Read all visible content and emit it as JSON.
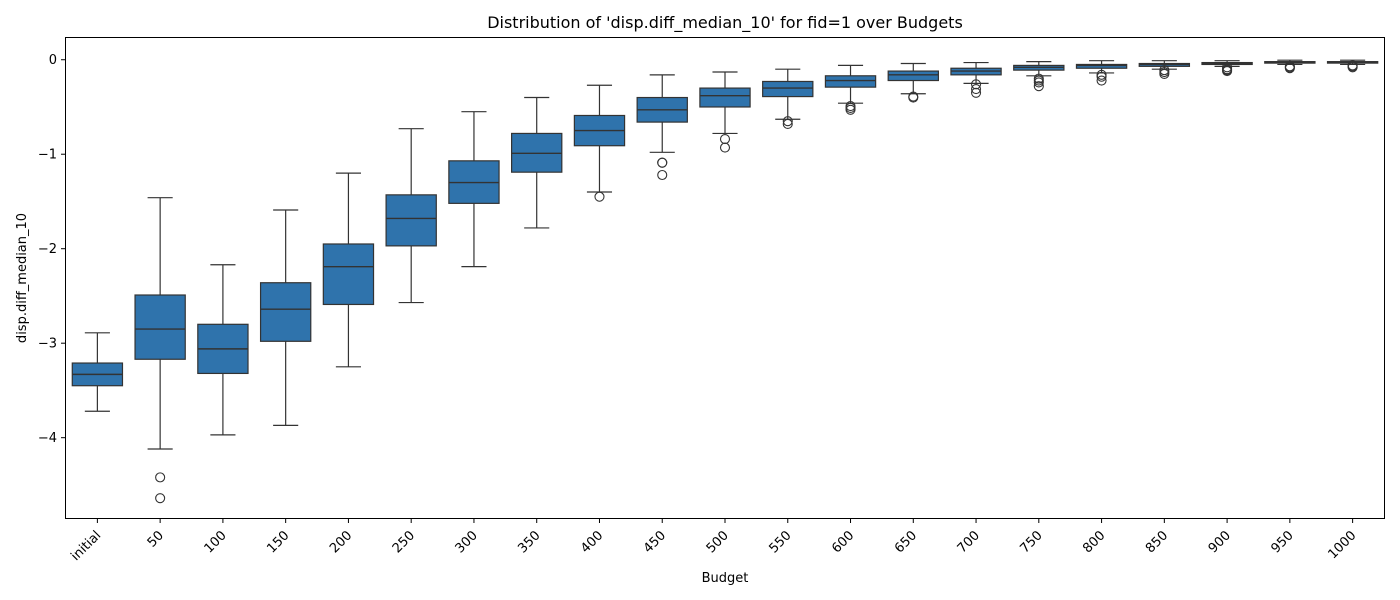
{
  "chart_data": {
    "type": "box",
    "title": "Distribution of 'disp.diff_median_10' for fid=1 over Budgets",
    "xlabel": "Budget",
    "ylabel": "disp.diff_median_10",
    "ylim": [
      -4.85,
      0.23
    ],
    "yticks": [
      0,
      -1,
      -2,
      -3,
      -4
    ],
    "ytick_labels": [
      "0",
      "−1",
      "−2",
      "−3",
      "−4"
    ],
    "grid": false,
    "legend": "none",
    "box_color": "#2f73ac",
    "line_color": "#333333",
    "categories": [
      "initial",
      "50",
      "100",
      "150",
      "200",
      "250",
      "300",
      "350",
      "400",
      "450",
      "500",
      "550",
      "600",
      "650",
      "700",
      "750",
      "800",
      "850",
      "900",
      "950",
      "1000"
    ],
    "boxes": [
      {
        "category": "initial",
        "whisker_low": -3.72,
        "q1": -3.45,
        "median": -3.33,
        "q3": -3.21,
        "whisker_high": -2.89,
        "outliers": []
      },
      {
        "category": "50",
        "whisker_low": -4.12,
        "q1": -3.17,
        "median": -2.85,
        "q3": -2.49,
        "whisker_high": -1.46,
        "outliers": [
          -4.42,
          -4.64
        ]
      },
      {
        "category": "100",
        "whisker_low": -3.97,
        "q1": -3.32,
        "median": -3.06,
        "q3": -2.8,
        "whisker_high": -2.17,
        "outliers": []
      },
      {
        "category": "150",
        "whisker_low": -3.87,
        "q1": -2.98,
        "median": -2.64,
        "q3": -2.36,
        "whisker_high": -1.59,
        "outliers": []
      },
      {
        "category": "200",
        "whisker_low": -3.25,
        "q1": -2.59,
        "median": -2.19,
        "q3": -1.95,
        "whisker_high": -1.2,
        "outliers": []
      },
      {
        "category": "250",
        "whisker_low": -2.57,
        "q1": -1.97,
        "median": -1.68,
        "q3": -1.43,
        "whisker_high": -0.73,
        "outliers": []
      },
      {
        "category": "300",
        "whisker_low": -2.19,
        "q1": -1.52,
        "median": -1.3,
        "q3": -1.07,
        "whisker_high": -0.55,
        "outliers": []
      },
      {
        "category": "350",
        "whisker_low": -1.78,
        "q1": -1.19,
        "median": -0.99,
        "q3": -0.78,
        "whisker_high": -0.4,
        "outliers": []
      },
      {
        "category": "400",
        "whisker_low": -1.4,
        "q1": -0.91,
        "median": -0.75,
        "q3": -0.59,
        "whisker_high": -0.27,
        "outliers": [
          -1.45
        ]
      },
      {
        "category": "450",
        "whisker_low": -0.98,
        "q1": -0.66,
        "median": -0.53,
        "q3": -0.4,
        "whisker_high": -0.16,
        "outliers": [
          -1.09,
          -1.09,
          -1.22
        ]
      },
      {
        "category": "500",
        "whisker_low": -0.78,
        "q1": -0.5,
        "median": -0.38,
        "q3": -0.3,
        "whisker_high": -0.13,
        "outliers": [
          -0.84,
          -0.93
        ]
      },
      {
        "category": "550",
        "whisker_low": -0.63,
        "q1": -0.39,
        "median": -0.3,
        "q3": -0.23,
        "whisker_high": -0.1,
        "outliers": [
          -0.65,
          -0.68
        ]
      },
      {
        "category": "600",
        "whisker_low": -0.46,
        "q1": -0.29,
        "median": -0.22,
        "q3": -0.17,
        "whisker_high": -0.06,
        "outliers": [
          -0.49,
          -0.51,
          -0.53
        ]
      },
      {
        "category": "650",
        "whisker_low": -0.36,
        "q1": -0.22,
        "median": -0.16,
        "q3": -0.12,
        "whisker_high": -0.04,
        "outliers": [
          -0.39,
          -0.4
        ]
      },
      {
        "category": "700",
        "whisker_low": -0.25,
        "q1": -0.16,
        "median": -0.12,
        "q3": -0.09,
        "whisker_high": -0.03,
        "outliers": [
          -0.26,
          -0.31,
          -0.35
        ]
      },
      {
        "category": "750",
        "whisker_low": -0.17,
        "q1": -0.11,
        "median": -0.08,
        "q3": -0.06,
        "whisker_high": -0.02,
        "outliers": [
          -0.2,
          -0.22,
          -0.24,
          -0.28
        ]
      },
      {
        "category": "800",
        "whisker_low": -0.14,
        "q1": -0.09,
        "median": -0.06,
        "q3": -0.05,
        "whisker_high": -0.01,
        "outliers": [
          -0.16,
          -0.18,
          -0.22
        ]
      },
      {
        "category": "850",
        "whisker_low": -0.1,
        "q1": -0.07,
        "median": -0.05,
        "q3": -0.04,
        "whisker_high": -0.01,
        "outliers": [
          -0.11,
          -0.13,
          -0.15
        ]
      },
      {
        "category": "900",
        "whisker_low": -0.07,
        "q1": -0.05,
        "median": -0.04,
        "q3": -0.03,
        "whisker_high": -0.01,
        "outliers": [
          -0.08,
          -0.1,
          -0.11,
          -0.12
        ]
      },
      {
        "category": "950",
        "whisker_low": -0.05,
        "q1": -0.035,
        "median": -0.03,
        "q3": -0.02,
        "whisker_high": -0.005,
        "outliers": [
          -0.07,
          -0.08,
          -0.09
        ]
      },
      {
        "category": "1000",
        "whisker_low": -0.05,
        "q1": -0.035,
        "median": -0.025,
        "q3": -0.02,
        "whisker_high": -0.005,
        "outliers": [
          -0.06,
          -0.07,
          -0.08
        ]
      }
    ]
  }
}
